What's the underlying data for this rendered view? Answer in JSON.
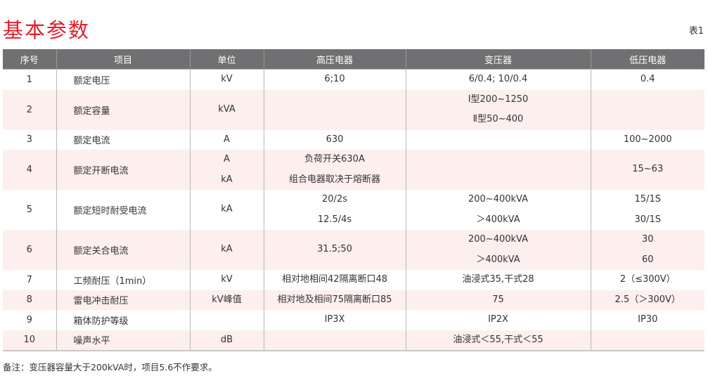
{
  "title": "基本参数",
  "table_no": "表1",
  "headers": [
    "序号",
    "项目",
    "单位",
    "高压电器",
    "变压器",
    "低压电器"
  ],
  "rows": [
    {
      "no": "1",
      "item": "额定电压",
      "unit": [
        "kV"
      ],
      "hv": [
        "6;10"
      ],
      "tr": [
        "6/0.4; 10/0.4"
      ],
      "lv": [
        "0.4"
      ]
    },
    {
      "no": "2",
      "item": "额定容量",
      "unit": [
        "kVA"
      ],
      "hv": [],
      "tr": [
        "Ⅰ型200~1250",
        "Ⅱ型50~400"
      ],
      "lv": []
    },
    {
      "no": "3",
      "item": "额定电流",
      "unit": [
        "A"
      ],
      "hv": [
        "630"
      ],
      "tr": [],
      "lv": [
        "100~2000"
      ]
    },
    {
      "no": "4",
      "item": "额定开断电流",
      "unit": [
        "A",
        "kA"
      ],
      "hv": [
        "负荷开关630A",
        "组合电器取决于熔断器"
      ],
      "tr": [],
      "lv": [
        "15~63"
      ]
    },
    {
      "no": "5",
      "item": "额定短时耐受电流",
      "unit": [
        "kA"
      ],
      "hv": [
        "20/2s",
        "12.5/4s"
      ],
      "tr": [
        "200~400kVA",
        "＞400kVA"
      ],
      "lv": [
        "15/1S",
        "30/1S"
      ]
    },
    {
      "no": "6",
      "item": "额定关合电流",
      "unit": [
        "kA"
      ],
      "hv": [
        "31.5;50"
      ],
      "tr": [
        "200~400kVA",
        "＞400kVA"
      ],
      "lv": [
        "30",
        "60"
      ]
    },
    {
      "no": "7",
      "item": "工频耐压（1min）",
      "unit": [
        "kV"
      ],
      "hv": [
        "相对地相间42隔离断口48"
      ],
      "tr": [
        "油浸式35,干式28"
      ],
      "lv": [
        "2（≤300V）"
      ]
    },
    {
      "no": "8",
      "item": "雷电冲击耐压",
      "unit": [
        "kV峰值"
      ],
      "hv": [
        "相对地及相间75隔离断口85"
      ],
      "tr": [
        "75"
      ],
      "lv": [
        "2.5（＞300V）"
      ]
    },
    {
      "no": "9",
      "item": "箱体防护等级",
      "unit": [],
      "hv": [
        "IP3X"
      ],
      "tr": [
        "IP2X"
      ],
      "lv": [
        "IP30"
      ]
    },
    {
      "no": "10",
      "item": "噪声水平",
      "unit": [
        "dB"
      ],
      "hv": [],
      "tr": [
        "油浸式＜55,干式＜55"
      ],
      "lv": []
    }
  ],
  "note": "备注：变压器容量大于200kVA时，项目5.6不作要求。",
  "colors": {
    "title": "#e0202a",
    "header_bg": "#707072",
    "stripe": "#fcefed"
  }
}
